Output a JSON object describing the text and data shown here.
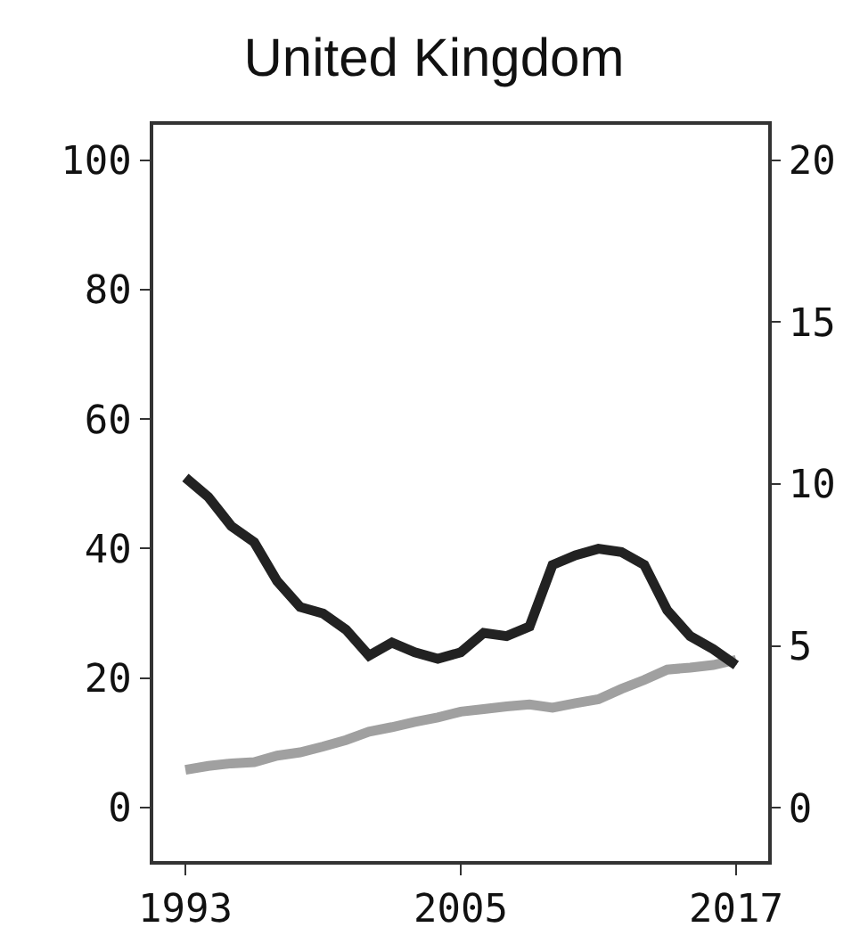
{
  "chart_data": {
    "type": "line",
    "title": "United Kingdom",
    "x": [
      1993,
      1994,
      1995,
      1996,
      1997,
      1998,
      1999,
      2000,
      2001,
      2002,
      2003,
      2004,
      2005,
      2006,
      2007,
      2008,
      2009,
      2010,
      2011,
      2012,
      2013,
      2014,
      2015,
      2016,
      2017
    ],
    "series": [
      {
        "color": "#222222",
        "axis": "y2",
        "values": [
          10.2,
          9.6,
          8.7,
          8.2,
          7.0,
          6.2,
          6.0,
          5.5,
          4.7,
          5.1,
          4.8,
          4.6,
          4.8,
          5.4,
          5.3,
          5.6,
          7.5,
          7.8,
          8.0,
          7.9,
          7.5,
          6.1,
          5.3,
          4.9,
          4.4
        ]
      },
      {
        "color": "#a0a0a0",
        "values": [
          5.8,
          6.4,
          6.8,
          7.0,
          8.0,
          8.5,
          9.4,
          10.4,
          11.7,
          12.4,
          13.2,
          13.9,
          14.8,
          15.2,
          15.6,
          15.9,
          15.4,
          16.1,
          16.7,
          18.3,
          19.7,
          21.3,
          21.6,
          22.0,
          22.8
        ]
      }
    ],
    "xlim": [
      1991.6,
      2018.4
    ],
    "xticks": [
      1993,
      2005,
      2017
    ],
    "ylim": [
      -8.3,
      105.5
    ],
    "yticks": [
      0,
      20,
      40,
      60,
      80,
      100
    ],
    "y2lim": [
      -1.65,
      21.1
    ],
    "y2ticks": [
      0,
      5,
      10,
      15,
      20
    ],
    "grid": false,
    "marker": "none",
    "line_style": "solid"
  }
}
